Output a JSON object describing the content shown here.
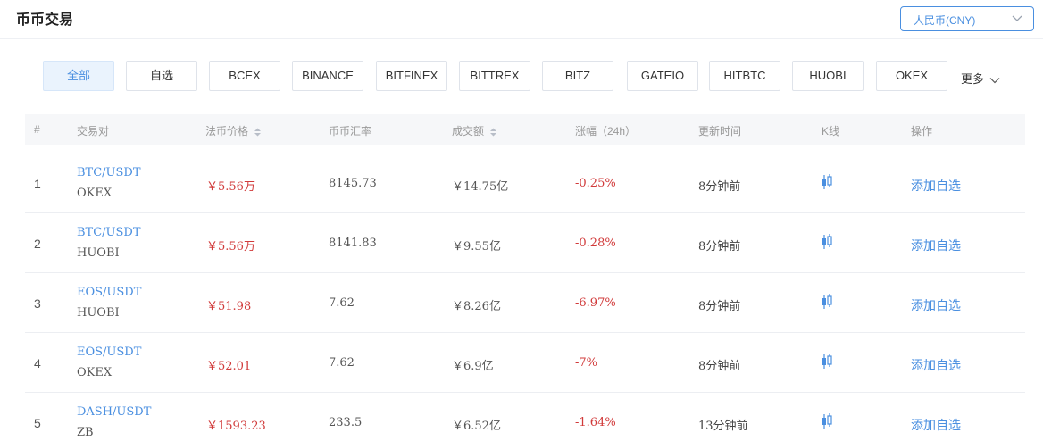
{
  "header": {
    "title": "币币交易",
    "currency_select": {
      "value": "人民币(CNY)"
    }
  },
  "filters": {
    "items": [
      "全部",
      "自选",
      "BCEX",
      "BINANCE",
      "BITFINEX",
      "BITTREX",
      "BITZ",
      "GATEIO",
      "HITBTC",
      "HUOBI",
      "OKEX"
    ],
    "active": "全部",
    "more_label": "更多"
  },
  "table": {
    "columns": {
      "index": "#",
      "pair": "交易对",
      "price": "法币价格",
      "rate": "币币汇率",
      "volume": "成交额",
      "change": "涨幅（24h）",
      "updated": "更新时间",
      "kline": "K线",
      "action": "操作"
    },
    "rows": [
      {
        "idx": "1",
        "pair": "BTC/USDT",
        "exchange": "OKEX",
        "price": "￥5.56万",
        "rate": "8145.73",
        "volume": "￥14.75亿",
        "change": "-0.25%",
        "updated": "8分钟前",
        "action": "添加自选"
      },
      {
        "idx": "2",
        "pair": "BTC/USDT",
        "exchange": "HUOBI",
        "price": "￥5.56万",
        "rate": "8141.83",
        "volume": "￥9.55亿",
        "change": "-0.28%",
        "updated": "8分钟前",
        "action": "添加自选"
      },
      {
        "idx": "3",
        "pair": "EOS/USDT",
        "exchange": "HUOBI",
        "price": "￥51.98",
        "rate": "7.62",
        "volume": "￥8.26亿",
        "change": "-6.97%",
        "updated": "8分钟前",
        "action": "添加自选"
      },
      {
        "idx": "4",
        "pair": "EOS/USDT",
        "exchange": "OKEX",
        "price": "￥52.01",
        "rate": "7.62",
        "volume": "￥6.9亿",
        "change": "-7%",
        "updated": "8分钟前",
        "action": "添加自选"
      },
      {
        "idx": "5",
        "pair": "DASH/USDT",
        "exchange": "ZB",
        "price": "￥1593.23",
        "rate": "233.5",
        "volume": "￥6.52亿",
        "change": "-1.64%",
        "updated": "13分钟前",
        "action": "添加自选"
      }
    ]
  },
  "colors": {
    "accent": "#4a8fe0",
    "negative": "#d13a3a",
    "header_bg": "#f6f7f9"
  },
  "icons": {
    "sort": "sort-arrows-icon",
    "kline": "candlestick-chart-icon",
    "dropdown": "chevron-down-icon"
  }
}
